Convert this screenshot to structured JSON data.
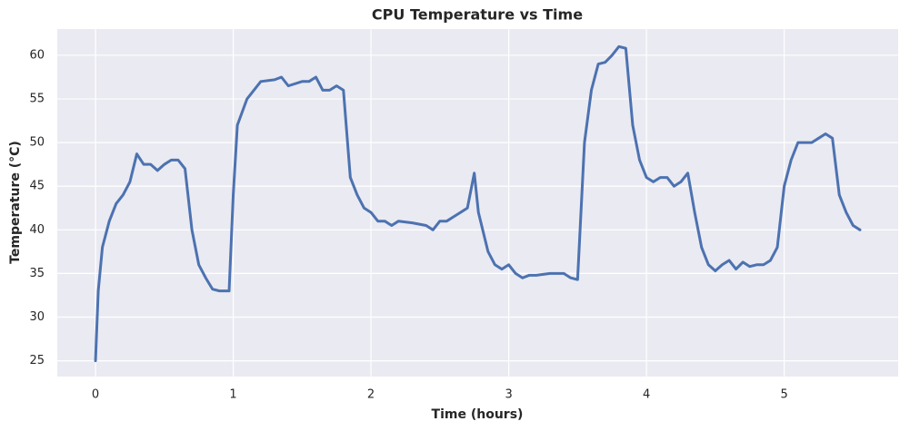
{
  "chart_data": {
    "type": "line",
    "title": "CPU Temperature vs Time",
    "xlabel": "Time (hours)",
    "ylabel": "Temperature (°C)",
    "x": [
      0,
      0.02,
      0.05,
      0.1,
      0.15,
      0.2,
      0.25,
      0.3,
      0.35,
      0.4,
      0.45,
      0.5,
      0.55,
      0.6,
      0.65,
      0.7,
      0.75,
      0.8,
      0.85,
      0.9,
      0.95,
      0.97,
      1.0,
      1.03,
      1.1,
      1.15,
      1.2,
      1.3,
      1.35,
      1.4,
      1.5,
      1.55,
      1.6,
      1.65,
      1.7,
      1.75,
      1.8,
      1.85,
      1.9,
      1.95,
      2.0,
      2.05,
      2.1,
      2.15,
      2.2,
      2.3,
      2.4,
      2.45,
      2.5,
      2.55,
      2.6,
      2.65,
      2.7,
      2.75,
      2.78,
      2.85,
      2.9,
      2.95,
      3.0,
      3.05,
      3.1,
      3.15,
      3.2,
      3.3,
      3.4,
      3.45,
      3.5,
      3.55,
      3.6,
      3.65,
      3.7,
      3.75,
      3.8,
      3.85,
      3.9,
      3.95,
      4.0,
      4.05,
      4.1,
      4.15,
      4.2,
      4.25,
      4.3,
      4.35,
      4.4,
      4.45,
      4.5,
      4.55,
      4.6,
      4.65,
      4.7,
      4.75,
      4.8,
      4.85,
      4.9,
      4.95,
      5.0,
      5.05,
      5.1,
      5.15,
      5.2,
      5.25,
      5.3,
      5.35,
      5.4,
      5.45,
      5.5,
      5.55
    ],
    "series": [
      {
        "name": "CPU Temperature",
        "color": "#4c72b0",
        "values": [
          25,
          33,
          38,
          41,
          43,
          44,
          45.5,
          48.7,
          47.5,
          47.5,
          46.8,
          47.5,
          48,
          48,
          47,
          40,
          36,
          34.5,
          33.2,
          33,
          33,
          33,
          44,
          52,
          55,
          56,
          57,
          57.2,
          57.5,
          56.5,
          57,
          57,
          57.5,
          56,
          56,
          56.5,
          56,
          46,
          44,
          42.5,
          42,
          41,
          41,
          40.5,
          41,
          40.8,
          40.5,
          40,
          41,
          41,
          41.5,
          42,
          42.5,
          46.5,
          42,
          37.5,
          36,
          35.5,
          36,
          35,
          34.5,
          34.8,
          34.8,
          35,
          35,
          34.5,
          34.3,
          50,
          56,
          59,
          59.2,
          60,
          61,
          60.8,
          52,
          48,
          46,
          45.5,
          46,
          46,
          45,
          45.5,
          46.5,
          42,
          38,
          36,
          35.3,
          36,
          36.5,
          35.5,
          36.3,
          35.8,
          36,
          36,
          36.5,
          38,
          45,
          48,
          50,
          50,
          50,
          50.5,
          51,
          50.5,
          44,
          42,
          40.5,
          40
        ]
      }
    ],
    "xlim": [
      -0.2775,
      5.8275
    ],
    "xticks": [
      0,
      1,
      2,
      3,
      4,
      5
    ],
    "ylim": [
      23.19,
      63.01
    ],
    "yticks": [
      25,
      30,
      35,
      40,
      45,
      50,
      55,
      60
    ],
    "grid": true
  }
}
